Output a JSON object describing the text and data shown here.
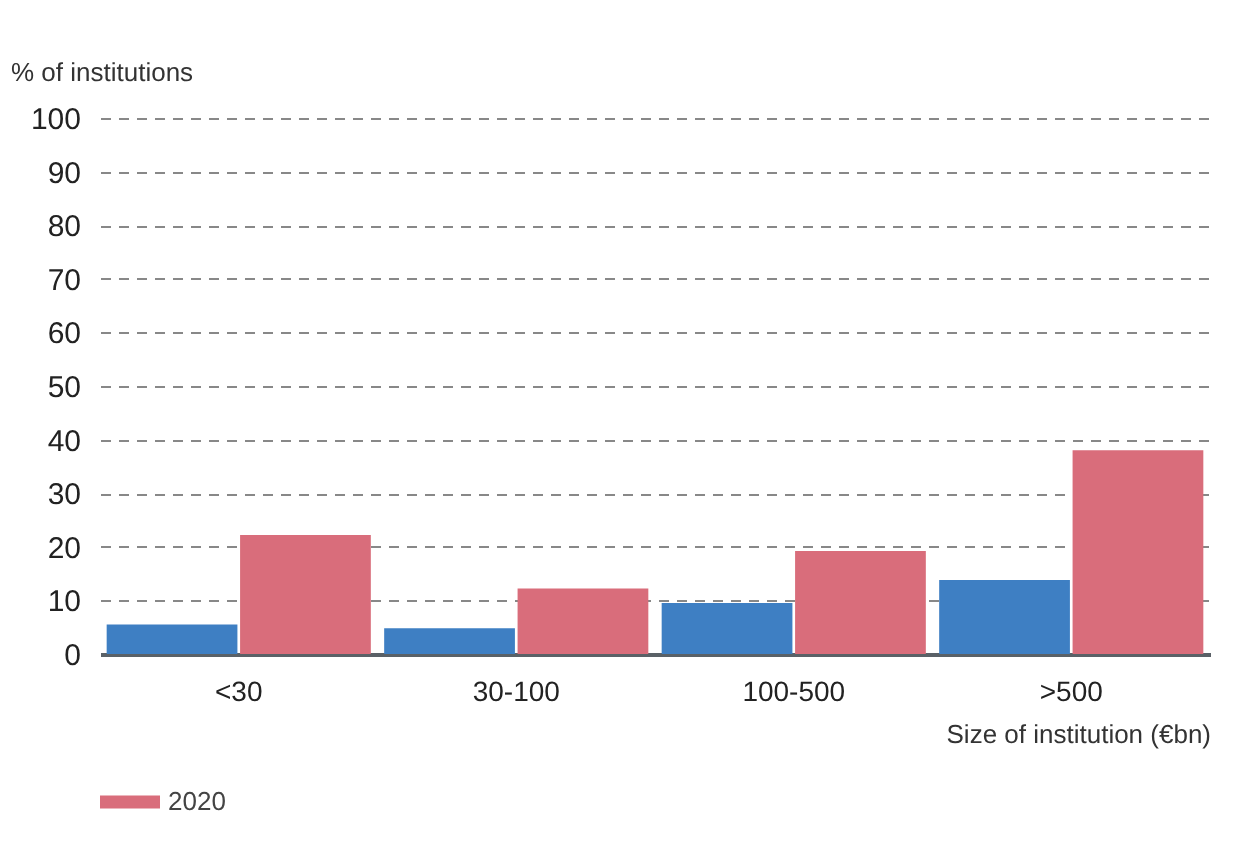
{
  "chart_data": {
    "type": "bar",
    "ylabel": "% of institutions",
    "xlabel": "Size of institution (€bn)",
    "categories": [
      "<30",
      "30-100",
      "100-500",
      ">500"
    ],
    "series": [
      {
        "color": "#3e7fc3",
        "values": [
          5.5,
          4.8,
          9.5,
          13.8
        ]
      },
      {
        "name": "2020",
        "color": "#d96d7b",
        "values": [
          22.2,
          12.2,
          19.2,
          38
        ]
      }
    ],
    "ylim": [
      0,
      100
    ],
    "yticks": [
      0,
      10,
      20,
      30,
      40,
      50,
      60,
      70,
      80,
      90,
      100
    ],
    "grid": "y",
    "legend": "bottom left"
  }
}
